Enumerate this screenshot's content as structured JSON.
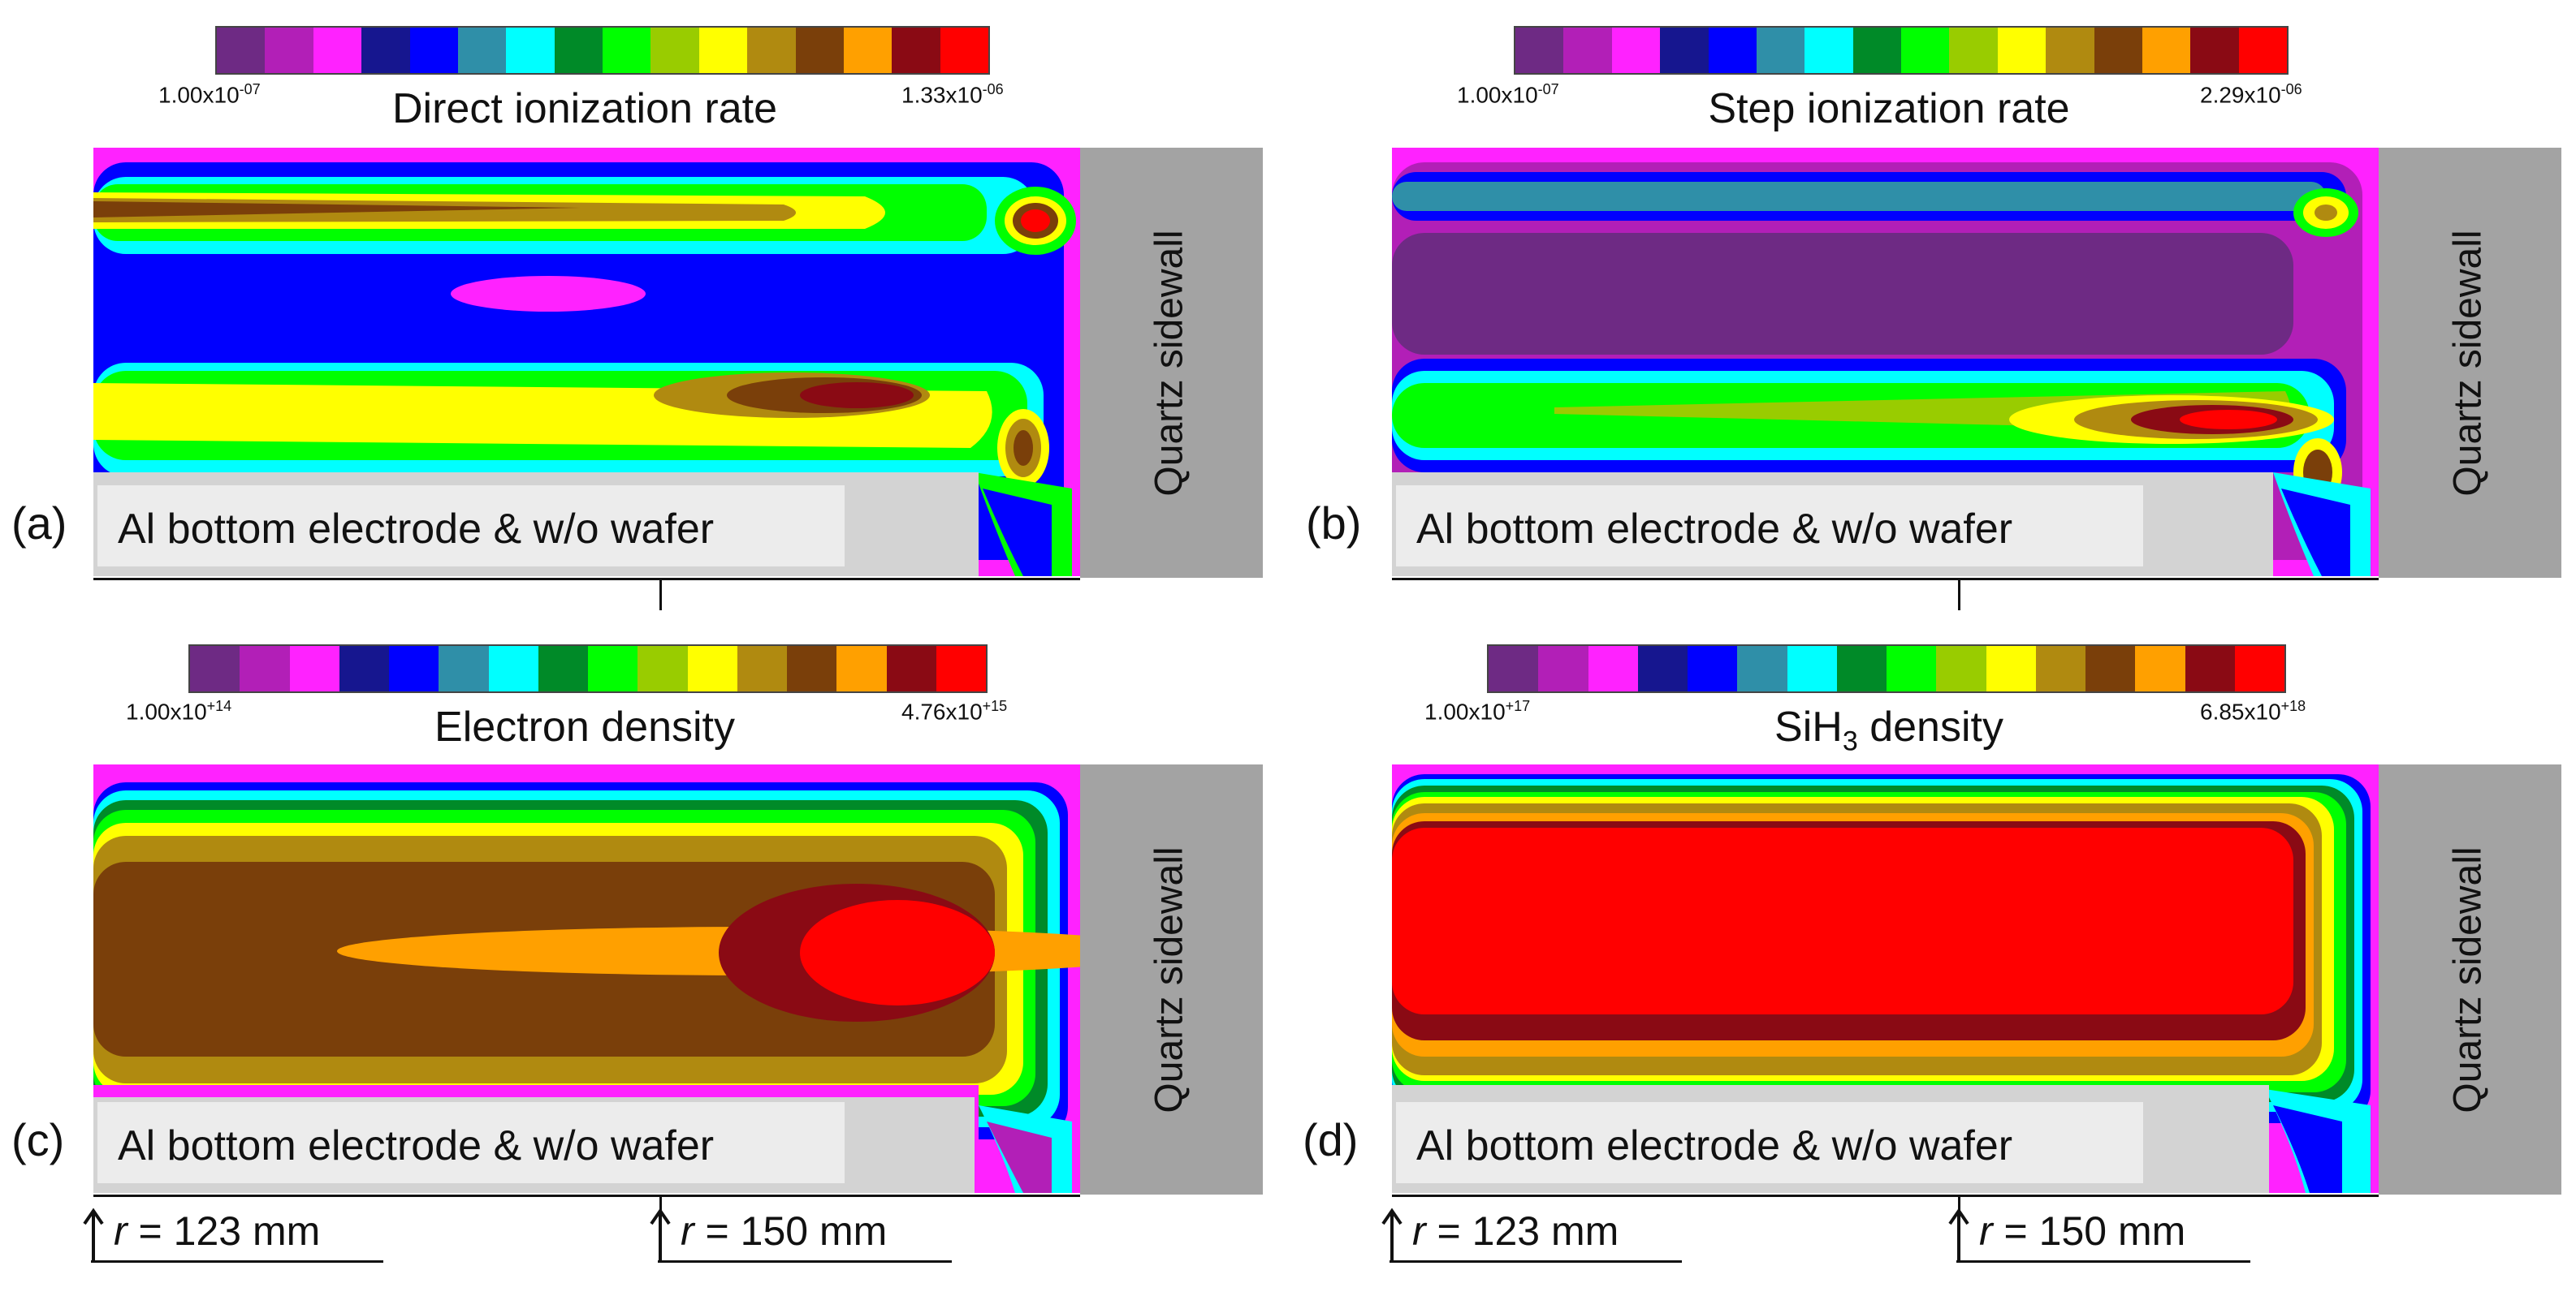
{
  "colormap": [
    "#6e2a84",
    "#b21fb7",
    "#ff22ff",
    "#16168f",
    "#0000ff",
    "#2f8fa8",
    "#00ffff",
    "#008a28",
    "#00ff00",
    "#99cc00",
    "#ffff00",
    "#b08a10",
    "#7a3f0a",
    "#ffa000",
    "#8a0a14",
    "#ff0000"
  ],
  "panels": [
    {
      "id": "a",
      "label": "(a)",
      "title": "Direct ionization rate",
      "cbar_min": "1.00x10",
      "cbar_min_exp": "-07",
      "cbar_max": "1.33x10",
      "cbar_max_exp": "-06",
      "sidewall": "Quartz sidewall",
      "electrode": "Al bottom electrode & w/o wafer"
    },
    {
      "id": "b",
      "label": "(b)",
      "title": "Step ionization rate",
      "cbar_min": "1.00x10",
      "cbar_min_exp": "-07",
      "cbar_max": "2.29x10",
      "cbar_max_exp": "-06",
      "sidewall": "Quartz sidewall",
      "electrode": "Al bottom electrode & w/o wafer"
    },
    {
      "id": "c",
      "label": "(c)",
      "title": "Electron density",
      "cbar_min": "1.00x10",
      "cbar_min_exp": "+14",
      "cbar_max": "4.76x10",
      "cbar_max_exp": "+15",
      "sidewall": "Quartz sidewall",
      "electrode": "Al bottom electrode & w/o wafer"
    },
    {
      "id": "d",
      "label": "(d)",
      "title_main": "SiH",
      "title_sub": "3",
      "title_rest": " density",
      "cbar_min": "1.00x10",
      "cbar_min_exp": "+17",
      "cbar_max": "6.85x10",
      "cbar_max_exp": "+18",
      "sidewall": "Quartz sidewall",
      "electrode": "Al bottom electrode & w/o wafer"
    }
  ],
  "markers": {
    "r_symbol": "r",
    "r1_value": " = 123 mm",
    "r2_value": " = 150 mm"
  }
}
